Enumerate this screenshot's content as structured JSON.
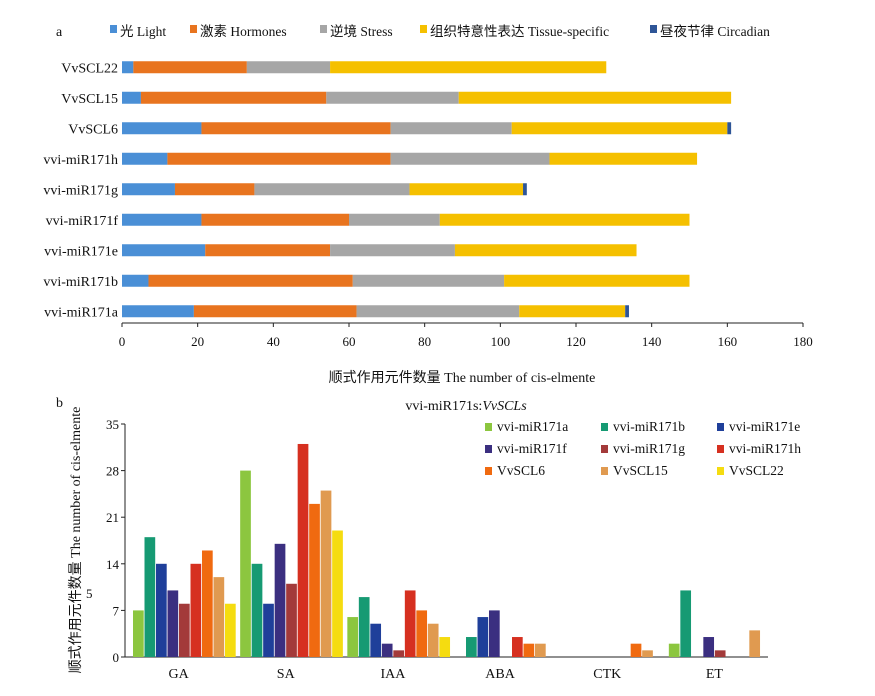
{
  "chart_data": [
    {
      "panel": "a",
      "type": "bar",
      "orientation": "horizontal",
      "stacked": true,
      "categories": [
        "vvi-miR171a",
        "vvi-miR171b",
        "vvi-miR171e",
        "vvi-miR171f",
        "vvi-miR171g",
        "vvi-miR171h",
        "VvSCL6",
        "VvSCL15",
        "VvSCL22"
      ],
      "series": [
        {
          "name": "光 Light",
          "color": "#4a8fd6",
          "values": [
            19,
            7,
            22,
            21,
            14,
            12,
            21,
            5,
            3
          ]
        },
        {
          "name": "激素 Hormones",
          "color": "#e8741f",
          "values": [
            43,
            54,
            33,
            39,
            21,
            59,
            50,
            49,
            30
          ]
        },
        {
          "name": "逆境 Stress",
          "color": "#a6a6a6",
          "values": [
            43,
            40,
            33,
            24,
            41,
            42,
            32,
            35,
            22
          ]
        },
        {
          "name": "组织特意性表达 Tissue-specific",
          "color": "#f5c000",
          "values": [
            28,
            49,
            48,
            66,
            30,
            39,
            57,
            72,
            73
          ]
        },
        {
          "name": "昼夜节律 Circadian",
          "color": "#2e5597",
          "values": [
            1,
            0,
            0,
            0,
            1,
            0,
            1,
            0,
            0
          ]
        }
      ],
      "xlabel": "顺式作用元件数量 The number of cis-elmente",
      "ylabel": "",
      "xlim": [
        0,
        180
      ],
      "xticks": [
        0,
        20,
        40,
        60,
        80,
        100,
        120,
        140,
        160,
        180
      ],
      "legend": "top"
    },
    {
      "panel": "b",
      "type": "bar",
      "orientation": "vertical",
      "stacked": false,
      "title": "vvi-miR171s:",
      "title_italic": "VvSCLs",
      "categories": [
        "GA",
        "SA",
        "IAA",
        "ABA",
        "CTK",
        "ET"
      ],
      "series": [
        {
          "name": "vvi-miR171a",
          "color": "#8cc63f",
          "values": [
            7,
            28,
            6,
            0,
            0,
            2
          ]
        },
        {
          "name": "vvi-miR171b",
          "color": "#169a73",
          "values": [
            18,
            14,
            9,
            3,
            0,
            10
          ]
        },
        {
          "name": "vvi-miR171e",
          "color": "#1f3f9a",
          "values": [
            14,
            8,
            5,
            6,
            0,
            0
          ]
        },
        {
          "name": "vvi-miR171f",
          "color": "#3b2f80",
          "values": [
            10,
            17,
            2,
            7,
            0,
            3
          ]
        },
        {
          "name": "vvi-miR171g",
          "color": "#a33a3a",
          "values": [
            8,
            11,
            1,
            0,
            0,
            1
          ]
        },
        {
          "name": "vvi-miR171h",
          "color": "#d63020",
          "values": [
            14,
            32,
            10,
            3,
            0,
            0
          ]
        },
        {
          "name": "VvSCL6",
          "color": "#f06a10",
          "values": [
            16,
            23,
            7,
            2,
            2,
            0
          ]
        },
        {
          "name": "VvSCL15",
          "color": "#e09a50",
          "values": [
            12,
            25,
            5,
            2,
            1,
            4
          ]
        },
        {
          "name": "VvSCL22",
          "color": "#f5dc10",
          "values": [
            8,
            19,
            3,
            0,
            0,
            0
          ]
        }
      ],
      "xlabel": "",
      "ylabel": "顺式作用元件数量 The number of cis-elmente",
      "ylim": [
        0,
        35
      ],
      "yticks": [
        0,
        7,
        14,
        21,
        28,
        35
      ],
      "legend": "top-right"
    }
  ],
  "panel_labels": {
    "a": "a",
    "b": "b"
  },
  "footnote_mark": "5"
}
